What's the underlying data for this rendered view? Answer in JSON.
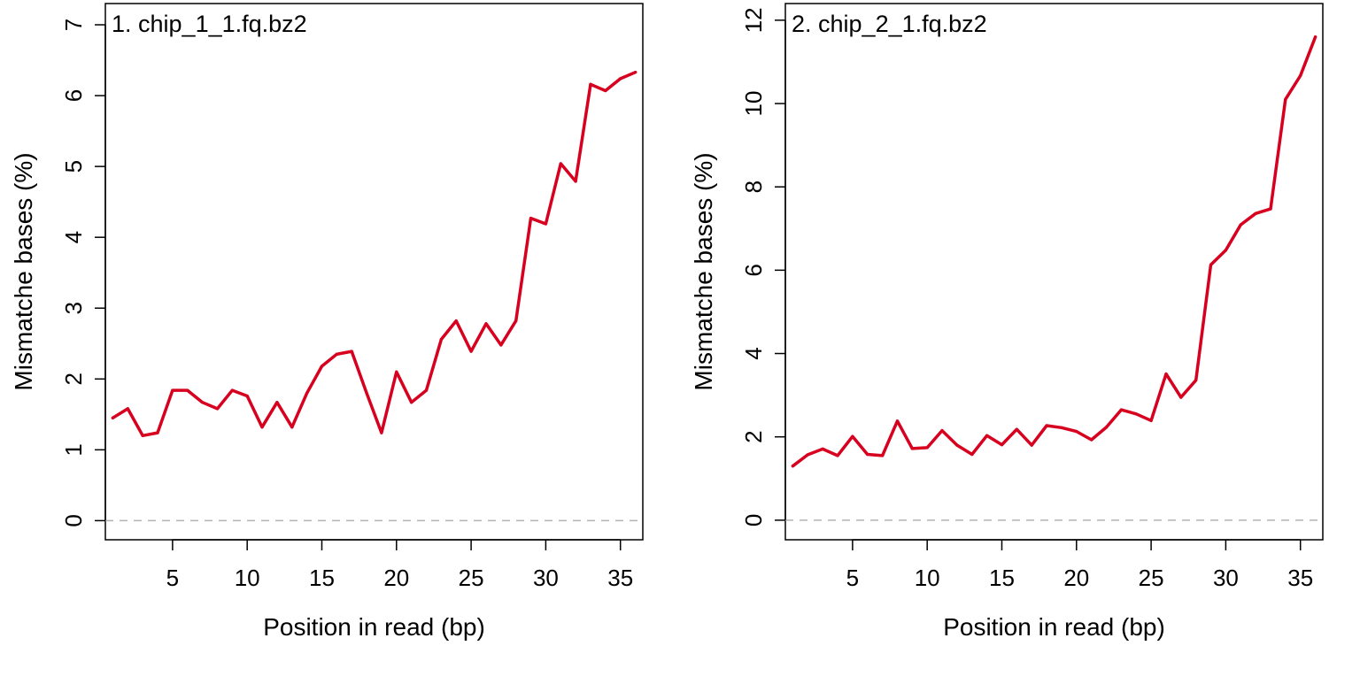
{
  "chart_data": [
    {
      "type": "line",
      "title": "1. chip_1_1.fq.bz2",
      "xlabel": "Position in read (bp)",
      "ylabel": "Mismatche bases (%)",
      "xlim": [
        0.5,
        36.5
      ],
      "ylim": [
        -0.27,
        7.3
      ],
      "xticks": [
        5,
        10,
        15,
        20,
        25,
        30,
        35
      ],
      "yticks": [
        0,
        1,
        2,
        3,
        4,
        5,
        6,
        7
      ],
      "reference_line": {
        "y": 0,
        "style": "dashed",
        "color": "#b3b3b3"
      },
      "grid": false,
      "series": [
        {
          "color": "#d7001f",
          "x": [
            1,
            2,
            3,
            4,
            5,
            6,
            7,
            8,
            9,
            10,
            11,
            12,
            13,
            14,
            15,
            16,
            17,
            18,
            19,
            20,
            21,
            22,
            23,
            24,
            25,
            26,
            27,
            28,
            29,
            30,
            31,
            32,
            33,
            34,
            35,
            36
          ],
          "values": [
            1.45,
            1.58,
            1.2,
            1.24,
            1.84,
            1.84,
            1.67,
            1.58,
            1.84,
            1.76,
            1.32,
            1.67,
            1.32,
            1.8,
            2.18,
            2.35,
            2.39,
            1.8,
            1.24,
            2.1,
            1.67,
            1.84,
            2.56,
            2.82,
            2.39,
            2.78,
            2.48,
            2.82,
            4.27,
            4.19,
            5.04,
            4.79,
            6.16,
            6.07,
            6.24,
            6.33
          ]
        }
      ]
    },
    {
      "type": "line",
      "title": "2. chip_2_1.fq.bz2",
      "xlabel": "Position in read (bp)",
      "ylabel": "Mismatche bases (%)",
      "xlim": [
        0.5,
        36.5
      ],
      "ylim": [
        -0.47,
        12.4
      ],
      "xticks": [
        5,
        10,
        15,
        20,
        25,
        30,
        35
      ],
      "yticks": [
        0,
        2,
        4,
        6,
        8,
        10,
        12
      ],
      "reference_line": {
        "y": 0,
        "style": "dashed",
        "color": "#b3b3b3"
      },
      "grid": false,
      "series": [
        {
          "color": "#d7001f",
          "x": [
            1,
            2,
            3,
            4,
            5,
            6,
            7,
            8,
            9,
            10,
            11,
            12,
            13,
            14,
            15,
            16,
            17,
            18,
            19,
            20,
            21,
            22,
            23,
            24,
            25,
            26,
            27,
            28,
            29,
            30,
            31,
            32,
            33,
            34,
            35,
            36
          ],
          "values": [
            1.3,
            1.57,
            1.71,
            1.55,
            2.01,
            1.58,
            1.55,
            2.38,
            1.72,
            1.74,
            2.15,
            1.8,
            1.58,
            2.03,
            1.81,
            2.18,
            1.8,
            2.27,
            2.22,
            2.13,
            1.93,
            2.23,
            2.65,
            2.55,
            2.39,
            3.51,
            2.95,
            3.36,
            6.13,
            6.48,
            7.09,
            7.36,
            7.47,
            10.1,
            10.67,
            11.6
          ]
        }
      ]
    }
  ]
}
